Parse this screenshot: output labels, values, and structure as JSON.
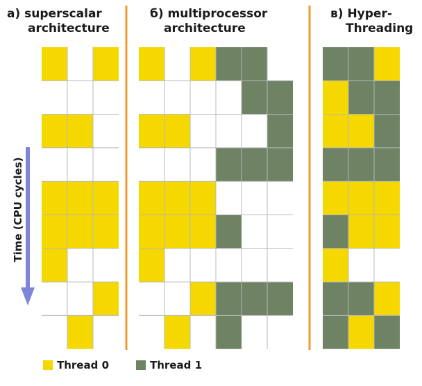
{
  "colors": {
    "thread0": "#f5d800",
    "thread1": "#6e8264",
    "divider": "#ef9a2c",
    "grid": "#b8b8b8",
    "arrow": "#7f86d8"
  },
  "panels": [
    {
      "title_line1": "a) superscalar",
      "title_line2": "architecture",
      "rows": [
        [
          0,
          null,
          0
        ],
        [
          null,
          null,
          null
        ],
        [
          0,
          0,
          null
        ],
        [
          null,
          null,
          null
        ],
        [
          0,
          0,
          0
        ],
        [
          0,
          0,
          0
        ],
        [
          0,
          null,
          null
        ],
        [
          null,
          null,
          0
        ],
        [
          null,
          0,
          null
        ]
      ]
    },
    {
      "title_line1": "б) multiprocessor",
      "title_line2": "architecture",
      "rows": [
        [
          0,
          null,
          0,
          1,
          1,
          null
        ],
        [
          null,
          null,
          null,
          null,
          1,
          1
        ],
        [
          0,
          0,
          null,
          null,
          null,
          1
        ],
        [
          null,
          null,
          null,
          1,
          1,
          1
        ],
        [
          0,
          0,
          0,
          null,
          null,
          null
        ],
        [
          0,
          0,
          0,
          1,
          null,
          null
        ],
        [
          0,
          null,
          null,
          null,
          null,
          null
        ],
        [
          null,
          null,
          0,
          1,
          1,
          1
        ],
        [
          null,
          0,
          null,
          1,
          null,
          null
        ]
      ]
    },
    {
      "title_line1": "в) Hyper-",
      "title_line2": "Threading",
      "rows": [
        [
          1,
          1,
          0
        ],
        [
          0,
          1,
          1
        ],
        [
          0,
          0,
          1
        ],
        [
          1,
          1,
          1
        ],
        [
          0,
          0,
          0
        ],
        [
          1,
          0,
          0
        ],
        [
          0,
          null,
          null
        ],
        [
          1,
          1,
          0
        ],
        [
          1,
          0,
          1
        ]
      ]
    }
  ],
  "axis": {
    "time_label": "Time (CPU cycles)"
  },
  "legend": {
    "thread0": "Thread 0",
    "thread1": "Thread 1"
  }
}
